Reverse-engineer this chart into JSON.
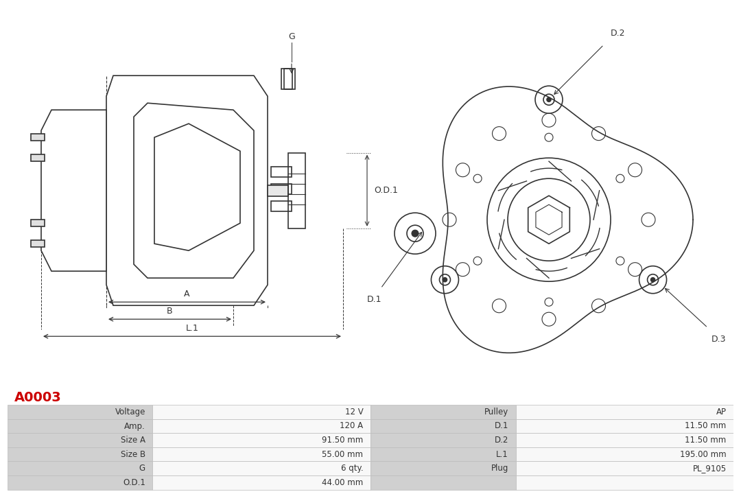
{
  "title_code": "A0003",
  "title_color": "#cc0000",
  "background_color": "#ffffff",
  "line_color": "#333333",
  "table": {
    "left_labels": [
      "Voltage",
      "Amp.",
      "Size A",
      "Size B",
      "G",
      "O.D.1"
    ],
    "left_values": [
      "12 V",
      "120 A",
      "91.50 mm",
      "55.00 mm",
      "6 qty.",
      "44.00 mm"
    ],
    "right_labels": [
      "Pulley",
      "D.1",
      "D.2",
      "L.1",
      "Plug",
      ""
    ],
    "right_values": [
      "AP",
      "11.50 mm",
      "11.50 mm",
      "195.00 mm",
      "PL_9105",
      ""
    ]
  },
  "dim_labels": {
    "A": "A",
    "B": "B",
    "L1": "L.1",
    "G": "G",
    "OD1": "O.D.1",
    "D1": "D.1",
    "D2": "D.2",
    "D3": "D.3"
  },
  "table_header_bg": "#d0d0d0",
  "table_row_bg1": "#f0f0f0",
  "table_row_bg2": "#ffffff",
  "table_border_color": "#aaaaaa"
}
